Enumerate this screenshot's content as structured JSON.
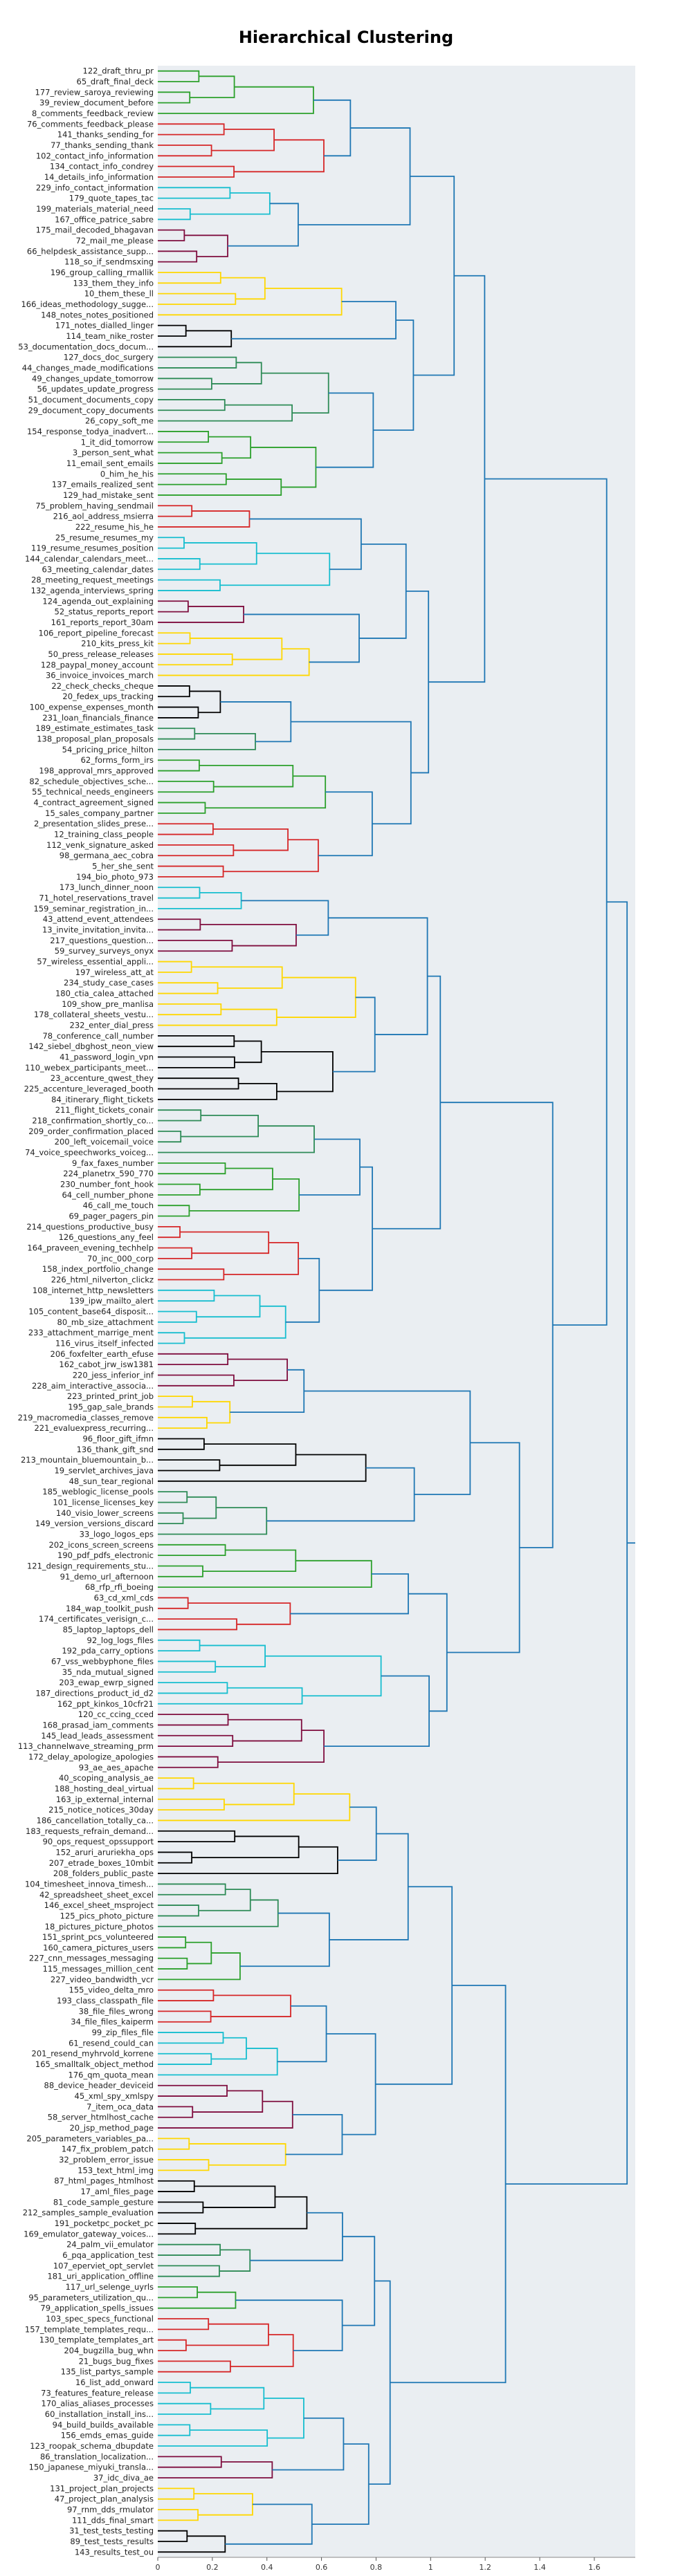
{
  "chart_data": {
    "type": "dendrogram",
    "title": "Hierarchical Clustering",
    "orientation": "left",
    "xlabel": "",
    "ylabel": "",
    "xlim": [
      0,
      1.75
    ],
    "x_ticks": [
      "0",
      "0.2",
      "0.4",
      "0.6",
      "0.8",
      "1",
      "1.2",
      "1.4",
      "1.6"
    ],
    "grid": false,
    "plot_background": "#eaeef2",
    "above_threshold_color": "#1f77b4",
    "cluster_colors": [
      "#2ca02c",
      "#d62728",
      "#17becf",
      "#7f0e3f",
      "#ffd700",
      "#000000",
      "#2e8b57"
    ],
    "leaves": [
      "122_draft_thru_pr",
      "65_draft_final_deck",
      "177_review_saroya_reviewing",
      "39_review_document_before",
      "8_comments_feedback_review",
      "76_comments_feedback_please",
      "141_thanks_sending_for",
      "77_thanks_sending_thank",
      "102_contact_info_information",
      "134_contact_info_condrey",
      "14_details_info_information",
      "229_info_contact_information",
      "179_quote_tapes_tac",
      "199_materials_material_need",
      "167_office_patrice_sabre",
      "175_mail_decoded_bhagavan",
      "72_mail_me_please",
      "66_helpdesk_assistance_supp...",
      "118_so_if_sendmsxing",
      "196_group_calling_rmallik",
      "133_them_they_info",
      "10_them_these_ll",
      "166_ideas_methodology_sugge...",
      "148_notes_notes_positioned",
      "171_notes_dialled_linger",
      "114_team_nike_roster",
      "53_documentation_docs_docum...",
      "127_docs_doc_surgery",
      "44_changes_made_modifications",
      "49_changes_update_tomorrow",
      "56_updates_update_progress",
      "51_document_documents_copy",
      "29_document_copy_documents",
      "26_copy_soft_me",
      "154_response_todya_inadvert...",
      "1_it_did_tomorrow",
      "3_person_sent_what",
      "11_email_sent_emails",
      "0_him_he_his",
      "137_emails_realized_sent",
      "129_had_mistake_sent",
      "75_problem_having_sendmail",
      "216_aol_address_msierra",
      "222_resume_his_he",
      "25_resume_resumes_my",
      "119_resume_resumes_position",
      "144_calendar_calendars_meet...",
      "63_meeting_calendar_dates",
      "28_meeting_request_meetings",
      "132_agenda_interviews_spring",
      "124_agenda_out_explaining",
      "52_status_reports_report",
      "161_reports_report_30am",
      "106_report_pipeline_forecast",
      "210_kits_press_kit",
      "50_press_release_releases",
      "128_paypal_money_account",
      "36_invoice_invoices_march",
      "22_check_checks_cheque",
      "20_fedex_ups_tracking",
      "100_expense_expenses_month",
      "231_loan_financials_finance",
      "189_estimate_estimates_task",
      "138_proposal_plan_proposals",
      "54_pricing_price_hilton",
      "62_forms_form_irs",
      "198_approval_mrs_approved",
      "82_schedule_objectives_sche...",
      "55_technical_needs_engineers",
      "4_contract_agreement_signed",
      "15_sales_company_partner",
      "2_presentation_slides_prese...",
      "12_training_class_people",
      "112_venk_signature_asked",
      "98_germana_aec_cobra",
      "5_her_she_sent",
      "194_bio_photo_973",
      "173_lunch_dinner_noon",
      "71_hotel_reservations_travel",
      "159_seminar_registration_in...",
      "43_attend_event_attendees",
      "13_invite_invitation_invita...",
      "217_questions_question...",
      "59_survey_surveys_onyx",
      "57_wireless_essential_appli...",
      "197_wireless_att_at",
      "234_study_case_cases",
      "180_ctia_calea_attached",
      "109_show_pre_manlisa",
      "178_collateral_sheets_vestu...",
      "232_enter_dial_press",
      "78_conference_call_number",
      "142_siebel_dbghost_neon_view",
      "41_password_login_vpn",
      "110_webex_participants_meet...",
      "23_accenture_qwest_they",
      "225_accenture_leveraged_booth",
      "84_itinerary_flight_tickets",
      "211_flight_tickets_conair",
      "218_confirmation_shortly_co...",
      "209_order_confirmation_placed",
      "200_left_voicemail_voice",
      "74_voice_speechworks_voiceg...",
      "9_fax_faxes_number",
      "224_planetrx_590_770",
      "230_number_font_hook",
      "64_cell_number_phone",
      "46_call_me_touch",
      "69_pager_pagers_pin",
      "214_questions_productive_busy",
      "126_questions_any_feel",
      "164_praveen_evening_techhelp",
      "70_inc_000_corp",
      "158_index_portfolio_change",
      "226_html_nilverton_clickz",
      "108_internet_http_newsletters",
      "139_ipw_mailto_alert",
      "105_content_base64_disposit...",
      "80_mb_size_attachment",
      "233_attachment_marrige_ment",
      "116_virus_itself_infected",
      "206_foxfelter_earth_efuse",
      "162_cabot_jrw_isw1381",
      "220_jess_inferior_inf",
      "228_aim_interactive_associa...",
      "223_printed_print_job",
      "195_gap_sale_brands",
      "219_macromedia_classes_remove",
      "221_evaluexpress_recurring...",
      "96_floor_gift_ifmn",
      "136_thank_gift_snd",
      "213_mountain_bluemountain_b...",
      "19_servlet_archives_java",
      "48_sun_tear_regional",
      "185_weblogic_license_pools",
      "101_license_licenses_key",
      "140_visio_lower_screens",
      "149_version_versions_discard",
      "33_logo_logos_eps",
      "202_icons_screen_screens",
      "190_pdf_pdfs_electronic",
      "121_design_requirements_stu...",
      "91_demo_url_afternoon",
      "68_rfp_rfi_boeing",
      "63_cd_xml_cds",
      "184_wap_toolkit_push",
      "174_certificates_verisign_c...",
      "85_laptop_laptops_dell",
      "92_log_logs_files",
      "192_pda_carry_options",
      "67_vss_webbyphone_files",
      "35_nda_mutual_signed",
      "203_ewap_ewrp_signed",
      "187_directions_product_id_d2",
      "162_ppt_kinkos_10cfr21",
      "120_cc_ccing_cced",
      "168_prasad_iam_comments",
      "145_lead_leads_assessment",
      "113_channelwave_streaming_prm",
      "172_delay_apologize_apologies",
      "93_ae_aes_apache",
      "40_scoping_analysis_ae",
      "188_hosting_deal_virtual",
      "163_ip_external_internal",
      "215_notice_notices_30day",
      "186_cancellation_totally_ca...",
      "183_requests_refrain_demand...",
      "90_ops_request_opssupport",
      "152_aruri_aruriekha_ops",
      "207_etrade_boxes_10mbit",
      "208_folders_public_paste",
      "104_timesheet_innova_timesh...",
      "42_spreadsheet_sheet_excel",
      "146_excel_sheet_msproject",
      "125_pics_photo_picture",
      "18_pictures_picture_photos",
      "151_sprint_pcs_volunteered",
      "160_camera_pictures_users",
      "227_cnn_messages_messaging",
      "115_messages_million_cent",
      "227_video_bandwidth_vcr",
      "155_video_delta_mro",
      "193_class_classpath_file",
      "38_file_files_wrong",
      "34_file_files_kaiperm",
      "99_zip_files_file",
      "61_resend_could_can",
      "201_resend_myhrvold_korrene",
      "165_smalltalk_object_method",
      "176_qm_quota_mean",
      "88_device_header_deviceid",
      "45_xml_spy_xmlspy",
      "7_item_oca_data",
      "58_server_htmlhost_cache",
      "20_jsp_method_page",
      "205_parameters_variables_pa...",
      "147_fix_problem_patch",
      "32_problem_error_issue",
      "153_text_html_img",
      "87_html_pages_htmlhost",
      "17_aml_files_page",
      "81_code_sample_gesture",
      "212_samples_sample_evaluation",
      "191_pocketpc_pocket_pc",
      "169_emulator_gateway_voices...",
      "24_palm_vii_emulator",
      "6_pqa_application_test",
      "107_eperviet_opt_servlet",
      "181_uri_application_offline",
      "117_url_selenge_uyrls",
      "95_parameters_utilization_qu...",
      "79_application_spells_issues",
      "103_spec_specs_functional",
      "157_template_templates_requ...",
      "130_template_templates_art",
      "204_bugzilla_bug_whn",
      "21_bugs_bug_fixes",
      "135_list_partys_sample",
      "16_list_add_onward",
      "73_features_feature_release",
      "170_alias_aliases_processes",
      "60_installation_install_ins...",
      "94_build_builds_available",
      "156_emds_emas_guide",
      "123_roopak_schema_dbupdate",
      "86_translation_localization...",
      "150_japanese_miyuki_transla...",
      "37_idc_diva_ae",
      "131_project_plan_projects",
      "47_project_plan_analysis",
      "97_rnm_dds_rmulator",
      "111_dds_final_smart",
      "31_test_tests_testing",
      "89_test_tests_results",
      "143_results_test_ou"
    ]
  }
}
